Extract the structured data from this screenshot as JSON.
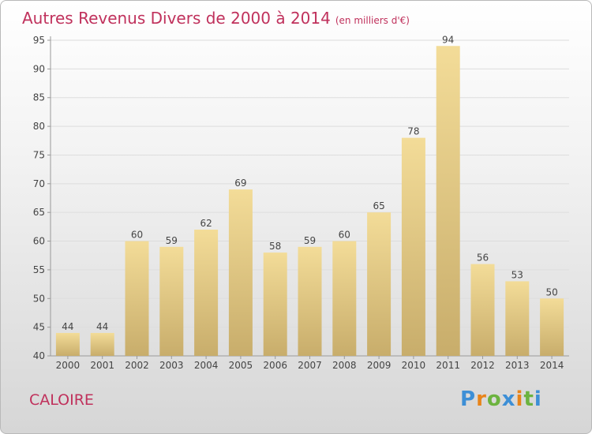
{
  "header": {
    "title": "Autres Revenus Divers de 2000 à 2014",
    "unit_note": "(en milliers d'€)"
  },
  "footer": {
    "location": "CALOIRE",
    "logo_text": "Proxiti"
  },
  "colors": {
    "title": "#c0315c",
    "bar_top": "#f3dc98",
    "bar_bottom": "#c8ad6b",
    "axis": "#999999",
    "grid": "#dddddd"
  },
  "chart_data": {
    "type": "bar",
    "title": "Autres Revenus Divers de 2000 à 2014",
    "xlabel": "",
    "ylabel": "",
    "categories": [
      "2000",
      "2001",
      "2002",
      "2003",
      "2004",
      "2005",
      "2006",
      "2007",
      "2008",
      "2009",
      "2010",
      "2011",
      "2012",
      "2013",
      "2014"
    ],
    "values": [
      44,
      44,
      60,
      59,
      62,
      69,
      58,
      59,
      60,
      65,
      78,
      94,
      56,
      53,
      50
    ],
    "ylim": [
      40,
      95
    ],
    "yticks": [
      40,
      45,
      50,
      55,
      60,
      65,
      70,
      75,
      80,
      85,
      90,
      95
    ],
    "grid": true,
    "legend": "none"
  }
}
